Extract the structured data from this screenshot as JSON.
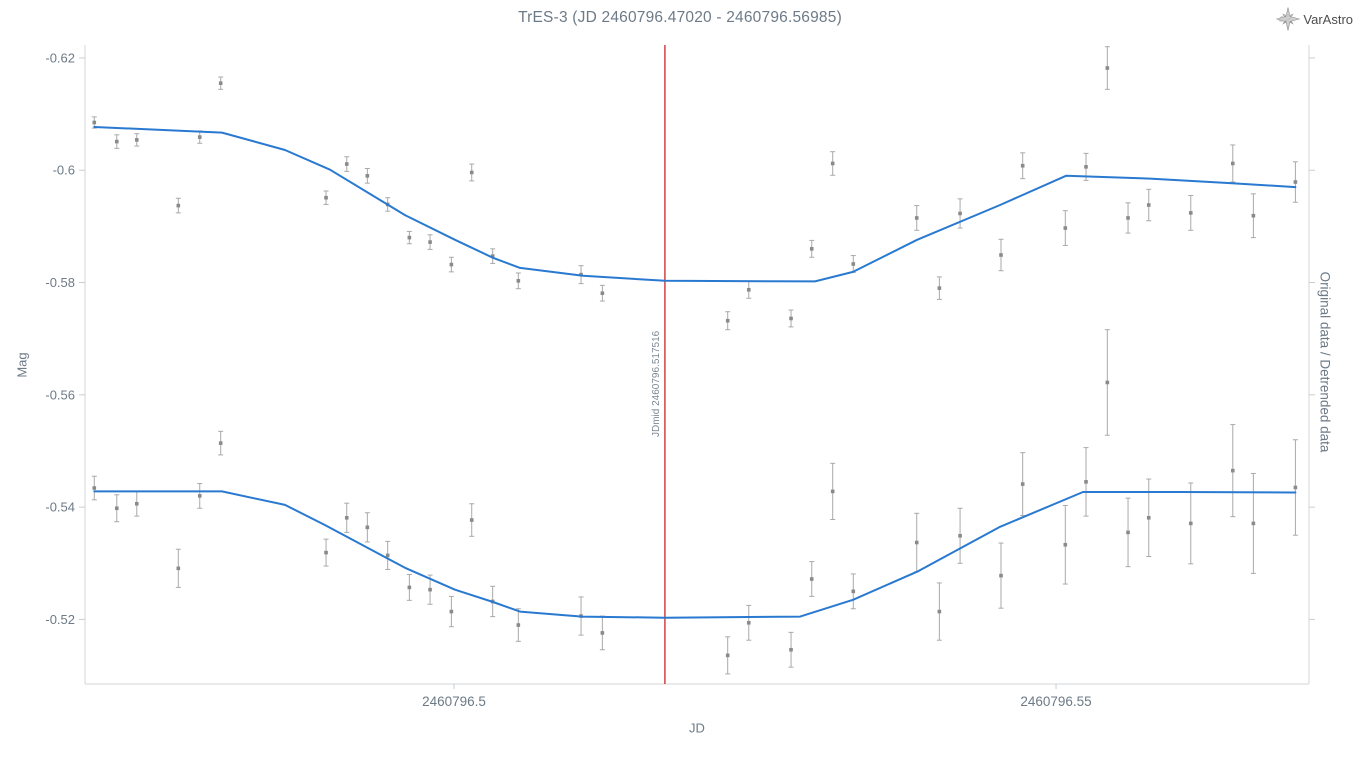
{
  "header": {
    "title": "TrES-3 (JD 2460796.47020 - 2460796.56985)"
  },
  "brand": {
    "name": "VarAstro"
  },
  "chart_data": {
    "type": "scatter",
    "title": "TrES-3 (JD 2460796.47020 - 2460796.56985)",
    "xlabel": "JD",
    "ylabel": "Mag",
    "ylabel_right": "Original data / Detrended data",
    "grid": false,
    "legend": "none",
    "y_inverted": true,
    "xlim": [
      2460796.46935,
      2460796.57101
    ],
    "ylim": [
      -0.6223,
      -0.5085
    ],
    "x_ticks": [
      {
        "value": 2460796.5,
        "label": "2460796.5"
      },
      {
        "value": 2460796.55,
        "label": "2460796.55"
      }
    ],
    "y_ticks": [
      {
        "value": -0.62,
        "label": "-0.62"
      },
      {
        "value": -0.6,
        "label": "-0.6"
      },
      {
        "value": -0.58,
        "label": "-0.58"
      },
      {
        "value": -0.56,
        "label": "-0.56"
      },
      {
        "value": -0.54,
        "label": "-0.54"
      },
      {
        "value": -0.52,
        "label": "-0.52"
      }
    ],
    "midline": {
      "jd": 2460796.517516,
      "label": "JDmid 2460796.517516"
    },
    "colors": {
      "model": "#2979d0",
      "midline": "#c41414",
      "marker": "#8a8a8a",
      "errbar": "#a9a9a9",
      "axis": "#d0d4d8",
      "tick": "#c9ced3",
      "text": "#6d7a87",
      "midlabel": "#7d8893"
    },
    "series": [
      {
        "name": "Original data",
        "points": [
          [
            2460796.47012,
            -0.6085,
            0.001
          ],
          [
            2460796.47199,
            -0.6051,
            0.0012
          ],
          [
            2460796.47365,
            -0.6054,
            0.0011
          ],
          [
            2460796.4771,
            -0.5937,
            0.0013
          ],
          [
            2460796.47888,
            -0.6059,
            0.0011
          ],
          [
            2460796.48062,
            -0.6155,
            0.0011
          ],
          [
            2460796.48937,
            -0.5951,
            0.0012
          ],
          [
            2460796.49109,
            -0.6011,
            0.0013
          ],
          [
            2460796.4928,
            -0.599,
            0.0013
          ],
          [
            2460796.49449,
            -0.5939,
            0.0012
          ],
          [
            2460796.49629,
            -0.588,
            0.0011
          ],
          [
            2460796.49801,
            -0.5872,
            0.0013
          ],
          [
            2460796.49978,
            -0.5832,
            0.0013
          ],
          [
            2460796.50147,
            -0.5996,
            0.0015
          ],
          [
            2460796.50321,
            -0.5847,
            0.0013
          ],
          [
            2460796.50534,
            -0.5803,
            0.0014
          ],
          [
            2460796.51055,
            -0.5814,
            0.0016
          ],
          [
            2460796.51232,
            -0.5781,
            0.0014
          ],
          [
            2460796.52273,
            -0.5732,
            0.0016
          ],
          [
            2460796.52448,
            -0.5787,
            0.0015
          ],
          [
            2460796.52799,
            -0.5736,
            0.0015
          ],
          [
            2460796.52971,
            -0.586,
            0.0015
          ],
          [
            2460796.53145,
            -0.6012,
            0.0021
          ],
          [
            2460796.53316,
            -0.5833,
            0.0015
          ],
          [
            2460796.53843,
            -0.5915,
            0.0022
          ],
          [
            2460796.54031,
            -0.579,
            0.002
          ],
          [
            2460796.54203,
            -0.5923,
            0.0026
          ],
          [
            2460796.54543,
            -0.5849,
            0.0028
          ],
          [
            2460796.54723,
            -0.6008,
            0.0023
          ],
          [
            2460796.55077,
            -0.5897,
            0.0031
          ],
          [
            2460796.55249,
            -0.6006,
            0.0024
          ],
          [
            2460796.55426,
            -0.6182,
            0.0038
          ],
          [
            2460796.55598,
            -0.5915,
            0.0027
          ],
          [
            2460796.5577,
            -0.5938,
            0.0028
          ],
          [
            2460796.56119,
            -0.5924,
            0.0031
          ],
          [
            2460796.56468,
            -0.6012,
            0.0033
          ],
          [
            2460796.56639,
            -0.5919,
            0.0039
          ],
          [
            2460796.56988,
            -0.5979,
            0.0036
          ]
        ],
        "model": [
          [
            2460796.47012,
            -0.6077
          ],
          [
            2460796.48073,
            -0.6067
          ],
          [
            2460796.48596,
            -0.6036
          ],
          [
            2460796.4897,
            -0.6001
          ],
          [
            2460796.49593,
            -0.592
          ],
          [
            2460796.50008,
            -0.5876
          ],
          [
            2460796.50324,
            -0.5844
          ],
          [
            2460796.50548,
            -0.5826
          ],
          [
            2460796.51071,
            -0.5812
          ],
          [
            2460796.51752,
            -0.5803
          ],
          [
            2460796.52998,
            -0.5802
          ],
          [
            2460796.53314,
            -0.5819
          ],
          [
            2460796.53846,
            -0.5876
          ],
          [
            2460796.54535,
            -0.5938
          ],
          [
            2460796.55083,
            -0.599
          ],
          [
            2460796.55781,
            -0.5985
          ],
          [
            2460796.56445,
            -0.5977
          ],
          [
            2460796.56988,
            -0.597
          ]
        ]
      },
      {
        "name": "Detrended data",
        "points": [
          [
            2460796.47012,
            -0.5434,
            0.0021
          ],
          [
            2460796.47199,
            -0.5398,
            0.0024
          ],
          [
            2460796.47365,
            -0.5406,
            0.0022
          ],
          [
            2460796.4771,
            -0.5291,
            0.0034
          ],
          [
            2460796.47888,
            -0.542,
            0.0022
          ],
          [
            2460796.48062,
            -0.5514,
            0.0021
          ],
          [
            2460796.48937,
            -0.5319,
            0.0024
          ],
          [
            2460796.49109,
            -0.5381,
            0.0026
          ],
          [
            2460796.4928,
            -0.5364,
            0.0026
          ],
          [
            2460796.49449,
            -0.5314,
            0.0025
          ],
          [
            2460796.49629,
            -0.5257,
            0.0023
          ],
          [
            2460796.49801,
            -0.5253,
            0.0026
          ],
          [
            2460796.49978,
            -0.5214,
            0.0027
          ],
          [
            2460796.50147,
            -0.5377,
            0.0029
          ],
          [
            2460796.50321,
            -0.5232,
            0.0027
          ],
          [
            2460796.50534,
            -0.519,
            0.0029
          ],
          [
            2460796.51055,
            -0.5206,
            0.0034
          ],
          [
            2460796.51232,
            -0.5176,
            0.003
          ],
          [
            2460796.52273,
            -0.5136,
            0.0033
          ],
          [
            2460796.52448,
            -0.5194,
            0.0031
          ],
          [
            2460796.52799,
            -0.5146,
            0.0031
          ],
          [
            2460796.52971,
            -0.5272,
            0.0031
          ],
          [
            2460796.53145,
            -0.5428,
            0.005
          ],
          [
            2460796.53316,
            -0.525,
            0.0031
          ],
          [
            2460796.53843,
            -0.5337,
            0.0052
          ],
          [
            2460796.54031,
            -0.5214,
            0.0051
          ],
          [
            2460796.54203,
            -0.5349,
            0.0049
          ],
          [
            2460796.54543,
            -0.5278,
            0.0058
          ],
          [
            2460796.54723,
            -0.5441,
            0.0056
          ],
          [
            2460796.55077,
            -0.5333,
            0.007
          ],
          [
            2460796.55249,
            -0.5445,
            0.0061
          ],
          [
            2460796.55426,
            -0.5622,
            0.0094
          ],
          [
            2460796.55598,
            -0.5355,
            0.0061
          ],
          [
            2460796.5577,
            -0.5381,
            0.0069
          ],
          [
            2460796.56119,
            -0.5371,
            0.0072
          ],
          [
            2460796.56468,
            -0.5465,
            0.0082
          ],
          [
            2460796.56639,
            -0.5371,
            0.0089
          ],
          [
            2460796.56988,
            -0.5435,
            0.0085
          ]
        ],
        "model": [
          [
            2460796.47012,
            -0.5428
          ],
          [
            2460796.48073,
            -0.5428
          ],
          [
            2460796.48596,
            -0.5404
          ],
          [
            2460796.48929,
            -0.5368
          ],
          [
            2460796.49593,
            -0.5292
          ],
          [
            2460796.50008,
            -0.5253
          ],
          [
            2460796.50324,
            -0.5231
          ],
          [
            2460796.50548,
            -0.5214
          ],
          [
            2460796.51063,
            -0.5205
          ],
          [
            2460796.51752,
            -0.5203
          ],
          [
            2460796.52874,
            -0.5205
          ],
          [
            2460796.53314,
            -0.5235
          ],
          [
            2460796.53846,
            -0.5285
          ],
          [
            2460796.54535,
            -0.5365
          ],
          [
            2460796.55224,
            -0.5427
          ],
          [
            2460796.5603,
            -0.5427
          ],
          [
            2460796.56988,
            -0.5426
          ]
        ]
      }
    ]
  }
}
